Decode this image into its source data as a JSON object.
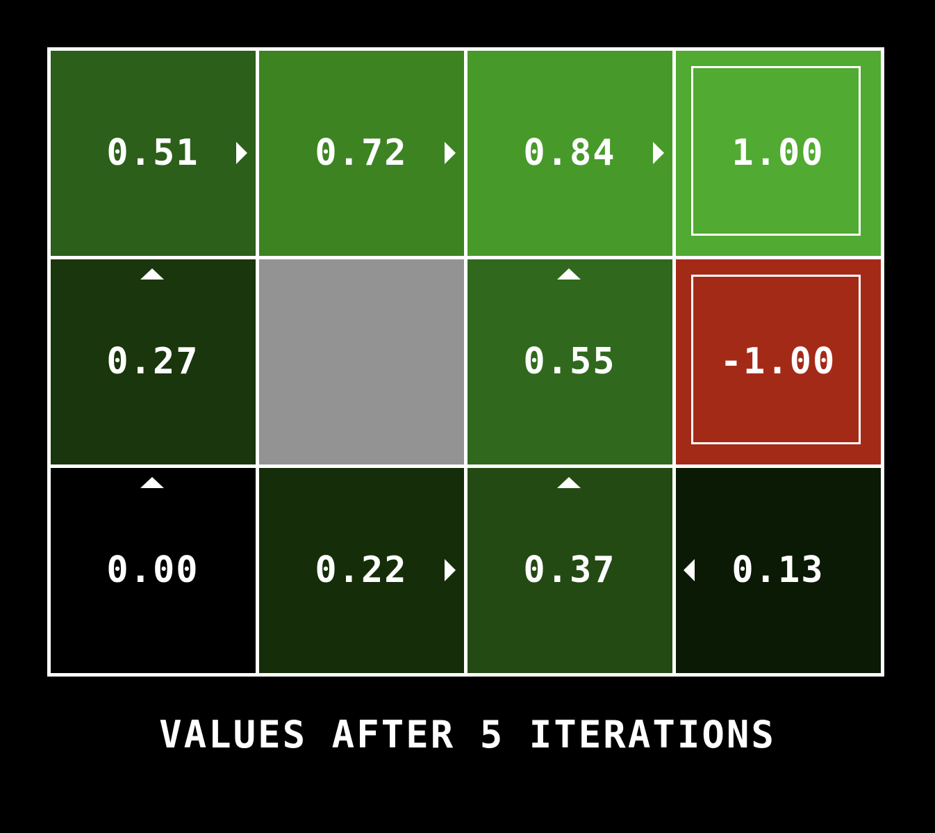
{
  "caption": "VALUES AFTER 5 ITERATIONS",
  "grid": {
    "rows": 3,
    "cols": 4,
    "line_color": "#ffffff",
    "cells": [
      {
        "row": 0,
        "col": 0,
        "value": "0.51",
        "color": "#2b5f1a",
        "arrow": "right"
      },
      {
        "row": 0,
        "col": 1,
        "value": "0.72",
        "color": "#3d8322",
        "arrow": "right"
      },
      {
        "row": 0,
        "col": 2,
        "value": "0.84",
        "color": "#479a2a",
        "arrow": "right"
      },
      {
        "row": 0,
        "col": 3,
        "value": "1.00",
        "color": "#51aa31",
        "arrow": null,
        "terminal": true
      },
      {
        "row": 1,
        "col": 0,
        "value": "0.27",
        "color": "#1a360c",
        "arrow": "up"
      },
      {
        "row": 1,
        "col": 1,
        "value": "",
        "color": "#939393",
        "arrow": null,
        "wall": true
      },
      {
        "row": 1,
        "col": 2,
        "value": "0.55",
        "color": "#30691d",
        "arrow": "up"
      },
      {
        "row": 1,
        "col": 3,
        "value": "-1.00",
        "color": "#a42a18",
        "arrow": null,
        "terminal": true
      },
      {
        "row": 2,
        "col": 0,
        "value": "0.00",
        "color": "#000000",
        "arrow": "up"
      },
      {
        "row": 2,
        "col": 1,
        "value": "0.22",
        "color": "#152e09",
        "arrow": "right"
      },
      {
        "row": 2,
        "col": 2,
        "value": "0.37",
        "color": "#244a13",
        "arrow": "up"
      },
      {
        "row": 2,
        "col": 3,
        "value": "0.13",
        "color": "#0a1a05",
        "arrow": "left"
      }
    ]
  }
}
